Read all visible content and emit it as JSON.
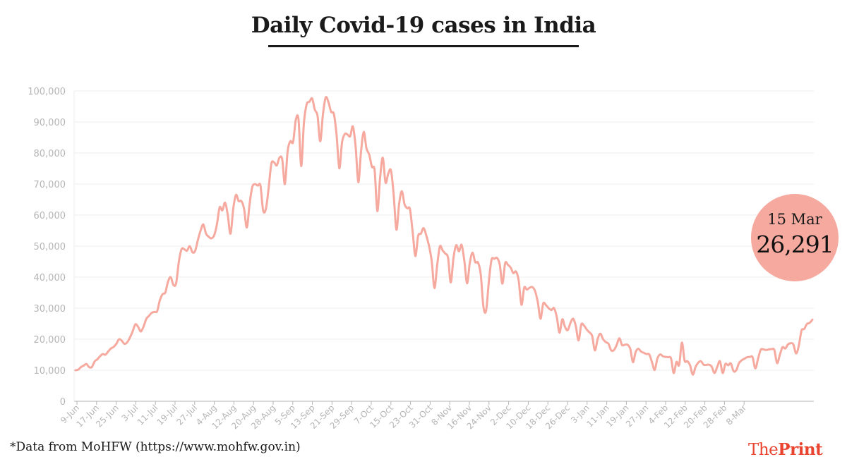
{
  "colors": {
    "line": "#f6a99e",
    "badge": "#f6a99e",
    "grid": "#ececec",
    "axis": "#b5b5b5",
    "brand": "#e8442f"
  },
  "badge": {
    "date": "15 Mar",
    "value": "26,291"
  },
  "source_note": "*Data from MoHFW (https://www.mohfw.gov.in)",
  "logo": {
    "part1": "The",
    "part2": "Print"
  },
  "chart_data": {
    "type": "line",
    "title": "Daily Covid-19 cases in India",
    "xlabel": "",
    "ylabel": "",
    "ylim": [
      0,
      100000
    ],
    "yticks": [
      0,
      10000,
      20000,
      30000,
      40000,
      50000,
      60000,
      70000,
      80000,
      90000,
      100000
    ],
    "ytick_labels": [
      "0",
      "10,000",
      "20,000",
      "30,000",
      "40,000",
      "50,000",
      "60,000",
      "70,000",
      "80,000",
      "90,000",
      "100,000"
    ],
    "xtick_labels": [
      "9-Jun",
      "17-Jun",
      "25-Jun",
      "3-Jul",
      "11-Jul",
      "19-Jul",
      "27-Jul",
      "4-Aug",
      "12-Aug",
      "20-Aug",
      "28-Aug",
      "5-Sep",
      "13-Sep",
      "21-Sep",
      "29-Sep",
      "7-Oct",
      "15-Oct",
      "23-Oct",
      "31-Oct",
      "8-Nov",
      "16-Nov",
      "24-Nov",
      "2-Dec",
      "10-Dec",
      "18-Dec",
      "26-Dec",
      "3-Jan",
      "11-Jan",
      "19-Jan",
      "27-Jan",
      "4-Feb",
      "12-Feb",
      "20-Feb",
      "28-Feb",
      "8-Mar"
    ],
    "grid": true,
    "x_start": "9-Jun",
    "x_end": "15-Mar",
    "series": [
      {
        "values": [
          10000,
          10200,
          11000,
          11500,
          12000,
          11000,
          11000,
          12800,
          13500,
          14500,
          15200,
          15000,
          16000,
          17000,
          17500,
          18500,
          20000,
          19500,
          18500,
          19000,
          20500,
          22500,
          24800,
          24000,
          22500,
          24000,
          26500,
          27500,
          28500,
          28800,
          29000,
          32500,
          34500,
          35000,
          38500,
          40000,
          37500,
          38000,
          45000,
          49000,
          49000,
          48500,
          50000,
          48000,
          48500,
          52000,
          55000,
          57000,
          54000,
          53000,
          52500,
          53500,
          57000,
          62500,
          61500,
          64000,
          60000,
          54000,
          62000,
          66500,
          64500,
          64500,
          62000,
          56000,
          63500,
          69000,
          70000,
          69500,
          69500,
          61500,
          62000,
          68500,
          76500,
          77000,
          76000,
          78500,
          78000,
          70000,
          80500,
          83800,
          83500,
          90600,
          90800,
          75800,
          89700,
          95700,
          96500,
          97600,
          94000,
          92000,
          83800,
          92600,
          97900,
          96400,
          93300,
          92600,
          86000,
          75100,
          83300,
          86100,
          86000,
          85400,
          88600,
          82200,
          70600,
          80500,
          86800,
          81500,
          79500,
          75600,
          74400,
          61300,
          72000,
          78500,
          70500,
          73300,
          74400,
          66700,
          55300,
          63500,
          67700,
          63500,
          62200,
          61900,
          54400,
          46800,
          53300,
          54000,
          55800,
          53400,
          50100,
          45100,
          36500,
          43900,
          49900,
          48600,
          47600,
          46200,
          38300,
          46200,
          50300,
          48300,
          50400,
          45200,
          38000,
          44600,
          47900,
          44800,
          44700,
          41100,
          30500,
          29200,
          38600,
          45600,
          45900,
          46200,
          44100,
          37900,
          44500,
          44000,
          43100,
          41300,
          41800,
          38800,
          31100,
          36600,
          36000,
          36600,
          36800,
          35500,
          32000,
          26600,
          31500,
          31000,
          30000,
          29400,
          30000,
          27100,
          22100,
          26400,
          24000,
          22900,
          25200,
          26600,
          24200,
          19600,
          24700,
          24400,
          23100,
          22200,
          21000,
          16400,
          20000,
          21800,
          20000,
          19100,
          18500,
          16400,
          16500,
          18100,
          20300,
          18100,
          18200,
          18200,
          16900,
          12600,
          15900,
          16900,
          16000,
          15600,
          15200,
          15100,
          12600,
          10100,
          13800,
          15100,
          14500,
          14300,
          14200,
          13800,
          9100,
          12700,
          11700,
          18900,
          13100,
          12900,
          11600,
          8600,
          11000,
          12400,
          12900,
          11800,
          11700,
          11800,
          11100,
          9100,
          11100,
          12900,
          9100,
          12000,
          11600,
          12200,
          9700,
          10000,
          12300,
          13200,
          13700,
          14200,
          14300,
          14200,
          10600,
          13700,
          16600,
          16700,
          16500,
          16700,
          16800,
          16500,
          12300,
          14900,
          17400,
          17000,
          18300,
          18700,
          18300,
          15400,
          17900,
          22800,
          23300,
          24900,
          25300,
          26300
        ]
      }
    ]
  }
}
